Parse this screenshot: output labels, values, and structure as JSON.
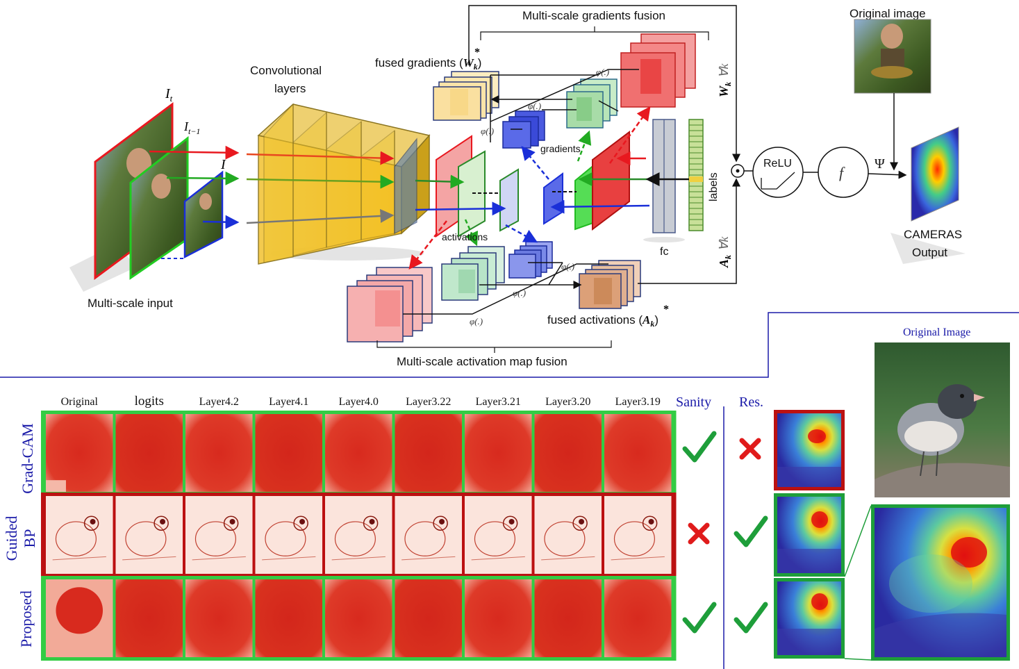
{
  "pipeline": {
    "title_gradients_fusion": "Multi-scale gradients fusion",
    "title_activation_fusion": "Multi-scale activation map fusion",
    "original_image_label": "Original image",
    "conv_layers_label": [
      "Convolutional",
      "layers"
    ],
    "fused_gradients_label": "fused gradients (",
    "fused_gradients_symbol": "W",
    "fused_activations_label": "fused activations (",
    "fused_activations_symbol": "A",
    "gradients_label": "gradients",
    "activations_label": "activations",
    "labels_label": "labels",
    "fc_label": "fc",
    "multiscale_input_label": "Multi-scale input",
    "input_It": "I",
    "input_It_sub": "t",
    "input_It1_sub": "t−1",
    "input_I": "I",
    "relu_label": "ReLU",
    "f_label": "f",
    "psi_label": "Ψ",
    "odot_label": "⊙",
    "phi_label": "φ(.)",
    "forall_w": "∀k",
    "forall_a": "∀k",
    "cameras_output": [
      "CAMERAS",
      "Output"
    ]
  },
  "comparison": {
    "columns": [
      "Original",
      "logits",
      "Layer4.2",
      "Layer4.1",
      "Layer4.0",
      "Layer3.22",
      "Layer3.21",
      "Layer3.20",
      "Layer3.19"
    ],
    "sanity_header": "Sanity",
    "res_header": "Res.",
    "original_image_header": "Original Image",
    "rows": [
      {
        "label": [
          "Grad-CAM"
        ],
        "sanity": "check",
        "res": "cross",
        "border": "#33cc44"
      },
      {
        "label": [
          "Guided",
          "BP"
        ],
        "sanity": "cross",
        "res": "check",
        "border": "#bb1111"
      },
      {
        "label": [
          "Proposed"
        ],
        "sanity": "check",
        "res": "check",
        "border": "#33cc44"
      }
    ]
  },
  "colors": {
    "red": "#e8181f",
    "green": "#22bb22",
    "blue": "#1a2fd8",
    "gold": "#f5c518",
    "navy": "#1a1aa8",
    "check": "#1e9e3a",
    "cross": "#e01b1b"
  }
}
